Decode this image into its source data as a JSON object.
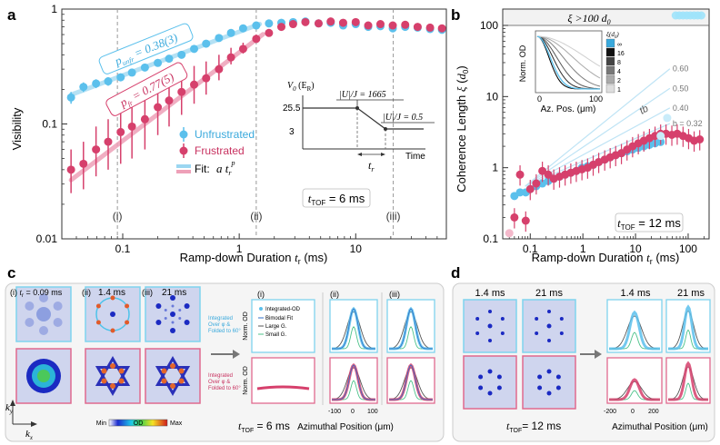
{
  "colors": {
    "unfrustrated": "#5bc0ec",
    "unfrustrated_light": "#a9dcf3",
    "frustrated": "#d6406c",
    "frustrated_light": "#eea0b8",
    "cyan_frame": "#7fd3ee",
    "pink_frame": "#e06a8e",
    "grid_dash": "#999999",
    "panel_bg": "#f4f4f4"
  },
  "panel_labels": {
    "a": "a",
    "b": "b",
    "c": "c",
    "d": "d"
  },
  "chart_data": [
    {
      "id": "a",
      "type": "scatter",
      "title": "",
      "xlabel": "Ramp-down Duration t_r (ms)",
      "ylabel": "Visibility",
      "xscale": "log",
      "yscale": "log",
      "xlim": [
        0.03,
        60
      ],
      "ylim": [
        0.01,
        1
      ],
      "x_ticks": [
        0.1,
        1,
        10
      ],
      "x_tick_labels": [
        "0.1",
        "1",
        "10"
      ],
      "y_ticks": [
        0.01,
        0.1,
        1
      ],
      "y_tick_labels": [
        "0.01",
        "0.1",
        "1"
      ],
      "vlines": [
        {
          "x": 0.09,
          "label": "(i)"
        },
        {
          "x": 1.4,
          "label": "(ii)"
        },
        {
          "x": 21,
          "label": "(iii)"
        }
      ],
      "series": [
        {
          "name": "Unfrustrated",
          "x": [
            0.036,
            0.046,
            0.059,
            0.075,
            0.096,
            0.12,
            0.155,
            0.2,
            0.25,
            0.32,
            0.41,
            0.52,
            0.67,
            0.85,
            1.08,
            1.4,
            1.8,
            2.3,
            2.9,
            3.7,
            4.8,
            6.1,
            7.8,
            10,
            12.8,
            16.3,
            20.8,
            26.6,
            34,
            43.5,
            55
          ],
          "y": [
            0.17,
            0.21,
            0.225,
            0.235,
            0.255,
            0.28,
            0.31,
            0.34,
            0.37,
            0.4,
            0.45,
            0.5,
            0.56,
            0.62,
            0.68,
            0.72,
            0.75,
            0.76,
            0.77,
            0.78,
            0.75,
            0.76,
            0.72,
            0.74,
            0.7,
            0.71,
            0.68,
            0.7,
            0.69,
            0.67,
            0.66
          ],
          "err_lo": [
            0.02,
            0.02,
            0.02,
            0.02,
            0.02,
            0.02,
            0.02,
            0.02,
            0.02,
            0.02,
            0.02,
            0.02,
            0.02,
            0.02,
            0.02,
            0.02,
            0.02,
            0.02,
            0.02,
            0.02,
            0.02,
            0.02,
            0.02,
            0.02,
            0.02,
            0.02,
            0.02,
            0.02,
            0.02,
            0.02,
            0.02
          ],
          "err_hi": [
            0.02,
            0.02,
            0.02,
            0.02,
            0.02,
            0.02,
            0.02,
            0.02,
            0.02,
            0.02,
            0.02,
            0.02,
            0.02,
            0.02,
            0.02,
            0.02,
            0.02,
            0.02,
            0.02,
            0.02,
            0.02,
            0.02,
            0.02,
            0.02,
            0.02,
            0.02,
            0.02,
            0.02,
            0.02,
            0.02,
            0.02
          ]
        },
        {
          "name": "Frustrated",
          "x": [
            0.036,
            0.046,
            0.059,
            0.075,
            0.096,
            0.12,
            0.155,
            0.2,
            0.25,
            0.32,
            0.41,
            0.52,
            0.67,
            0.85,
            1.08,
            1.4,
            1.8,
            2.3,
            2.9,
            3.7,
            4.8,
            6.1,
            7.8,
            10,
            12.8,
            16.3,
            20.8,
            26.6,
            34,
            43.5,
            55
          ],
          "y": [
            0.04,
            0.045,
            0.06,
            0.07,
            0.085,
            0.095,
            0.11,
            0.14,
            0.16,
            0.19,
            0.22,
            0.25,
            0.3,
            0.38,
            0.45,
            0.55,
            0.62,
            0.7,
            0.74,
            0.77,
            0.75,
            0.78,
            0.76,
            0.77,
            0.72,
            0.74,
            0.72,
            0.73,
            0.7,
            0.69,
            0.68
          ],
          "err_lo": [
            0.015,
            0.018,
            0.025,
            0.03,
            0.04,
            0.045,
            0.05,
            0.06,
            0.065,
            0.07,
            0.07,
            0.07,
            0.06,
            0.05,
            0.04,
            0.03,
            0.03,
            0.03,
            0.02,
            0.02,
            0.02,
            0.02,
            0.02,
            0.02,
            0.02,
            0.02,
            0.02,
            0.02,
            0.02,
            0.02,
            0.02
          ],
          "err_hi": [
            0.02,
            0.025,
            0.035,
            0.04,
            0.05,
            0.06,
            0.07,
            0.08,
            0.09,
            0.1,
            0.1,
            0.1,
            0.1,
            0.08,
            0.06,
            0.05,
            0.04,
            0.03,
            0.02,
            0.02,
            0.02,
            0.02,
            0.02,
            0.02,
            0.02,
            0.02,
            0.02,
            0.02,
            0.02,
            0.02,
            0.02
          ]
        }
      ],
      "fits": [
        {
          "name": "Fit: a t_r^p (unfrustrated)",
          "p": 0.38,
          "a": 0.635,
          "x_range": [
            0.036,
            1.5
          ]
        },
        {
          "name": "Fit: a t_r^p (frustrated)",
          "p": 0.77,
          "a": 0.42,
          "x_range": [
            0.036,
            1.6
          ]
        }
      ],
      "annotations": {
        "p_unf": "p_unf = 0.38(3)",
        "p_fr": "p_fr = 0.77(5)",
        "legend": [
          "Unfrustrated",
          "Frustrated",
          "Fit:"
        ],
        "fit_formula": "a t",
        "fit_sub": "r",
        "fit_sup": "p",
        "ttof": "t_TOF = 6 ms",
        "inset_ylabel": "V_0 (E_R)",
        "inset_y_ticks": [
          "25.5",
          "3"
        ],
        "inset_U1": "|U|/J = 1665",
        "inset_U2": "|U|/J = 0.5",
        "inset_xlabel": "Time",
        "inset_tr": "t_r"
      }
    },
    {
      "id": "b",
      "type": "scatter",
      "xlabel": "Ramp-down Duration t_r (ms)",
      "ylabel": "Coherence Length ξ (d_0)",
      "xscale": "log",
      "yscale": "log",
      "xlim": [
        0.03,
        250
      ],
      "ylim": [
        0.1,
        100
      ],
      "x_ticks": [
        0.1,
        1,
        10,
        100
      ],
      "x_tick_labels": [
        "0.1",
        "1",
        "10",
        "100"
      ],
      "y_ticks": [
        0.1,
        1,
        10,
        100
      ],
      "y_tick_labels": [
        "0.1",
        "1",
        "10",
        "100"
      ],
      "top_band_label": "ξ >100 d_0",
      "series": [
        {
          "name": "Unfrustrated",
          "x": [
            0.05,
            0.064,
            0.082,
            0.1,
            0.13,
            0.17,
            0.22,
            0.28,
            0.36,
            0.46,
            0.59,
            0.75,
            0.96,
            1.23,
            1.57,
            2.0,
            2.6,
            3.3,
            4.2,
            5.4,
            6.9,
            8.8,
            11.3,
            14.4,
            18.4,
            23.5,
            30
          ],
          "y": [
            0.4,
            0.45,
            0.45,
            0.5,
            0.55,
            0.6,
            0.65,
            0.7,
            0.75,
            0.8,
            0.85,
            0.9,
            1.0,
            1.05,
            1.1,
            1.2,
            1.3,
            1.4,
            1.5,
            1.6,
            1.7,
            1.8,
            1.9,
            2.0,
            2.1,
            2.2,
            2.3
          ]
        },
        {
          "name": "Frustrated",
          "x": [
            0.05,
            0.064,
            0.082,
            0.1,
            0.13,
            0.17,
            0.22,
            0.28,
            0.36,
            0.46,
            0.59,
            0.75,
            0.96,
            1.23,
            1.57,
            2.0,
            2.6,
            3.3,
            4.2,
            5.4,
            6.9,
            8.8,
            11.3,
            14.4,
            18.4,
            23.5,
            30,
            38,
            49,
            62,
            80,
            102,
            130,
            166
          ],
          "y": [
            0.2,
            0.8,
            0.18,
            0.5,
            0.6,
            0.9,
            0.8,
            0.7,
            0.75,
            0.8,
            0.85,
            0.9,
            0.95,
            1.0,
            1.1,
            1.2,
            1.3,
            1.4,
            1.5,
            1.6,
            1.8,
            2.0,
            2.2,
            2.4,
            2.6,
            2.8,
            3.0,
            3.0,
            2.9,
            3.0,
            2.8,
            2.6,
            2.4,
            2.5
          ]
        },
        {
          "name": "Unfrustrated (ξ >100)",
          "x": [
            58,
            68,
            80,
            94,
            110,
            130,
            152,
            178
          ],
          "y": [
            130,
            130,
            130,
            130,
            130,
            130,
            130,
            130
          ]
        }
      ],
      "light_points": [
        {
          "x": 40,
          "y": 5
        },
        {
          "x": 30,
          "y": 2.8
        },
        {
          "x": 0.04,
          "y": 0.12
        }
      ],
      "guide_lines": [
        {
          "b": 0.6,
          "label": "0.60"
        },
        {
          "b": 0.5,
          "label": "0.50"
        },
        {
          "b": 0.4,
          "label": "0.40"
        },
        {
          "b": 0.32,
          "label": "b = 0.32"
        }
      ],
      "guide_formula": "t_r^b",
      "ttof": "t_TOF = 12 ms",
      "inset": {
        "xlabel": "Az. Pos. (μm)",
        "ylabel": "Norm. OD",
        "x_ticks": [
          "0",
          "100"
        ],
        "legend_title": "ξ(d_0)",
        "legend_levels": [
          "∞",
          "16",
          "8",
          "4",
          "2",
          "1"
        ]
      }
    },
    {
      "id": "c",
      "type": "line",
      "xlabel": "Azimuthal Position (μm)",
      "ylabel": "Norm. OD",
      "x_ticks": [
        -100,
        0,
        100
      ],
      "subpanels": [
        "(i)",
        "(ii)",
        "(iii)"
      ],
      "series": [
        "Integrated-OD",
        "Bimodal Fit",
        "Large G.",
        "Small G."
      ],
      "image_times": [
        "t_r = 0.09 ms",
        "1.4 ms",
        "21 ms"
      ],
      "process_labels": [
        "Integrated Over φ & Folded to 60°",
        "Integrated Over φ & Folded to 60°"
      ],
      "axis_labels": [
        "k_y",
        "k_x"
      ],
      "colorbar": {
        "min": "Min",
        "mid": "OD",
        "max": "Max"
      },
      "ttof": "t_TOF = 6 ms"
    },
    {
      "id": "d",
      "type": "line",
      "xlabel": "Azimuthal Position (μm)",
      "x_ticks": [
        -200,
        0,
        200
      ],
      "image_times": [
        "1.4 ms",
        "21 ms"
      ],
      "profile_times": [
        "1.4 ms",
        "21 ms"
      ],
      "ttof": "t_TOF = 12 ms"
    }
  ]
}
